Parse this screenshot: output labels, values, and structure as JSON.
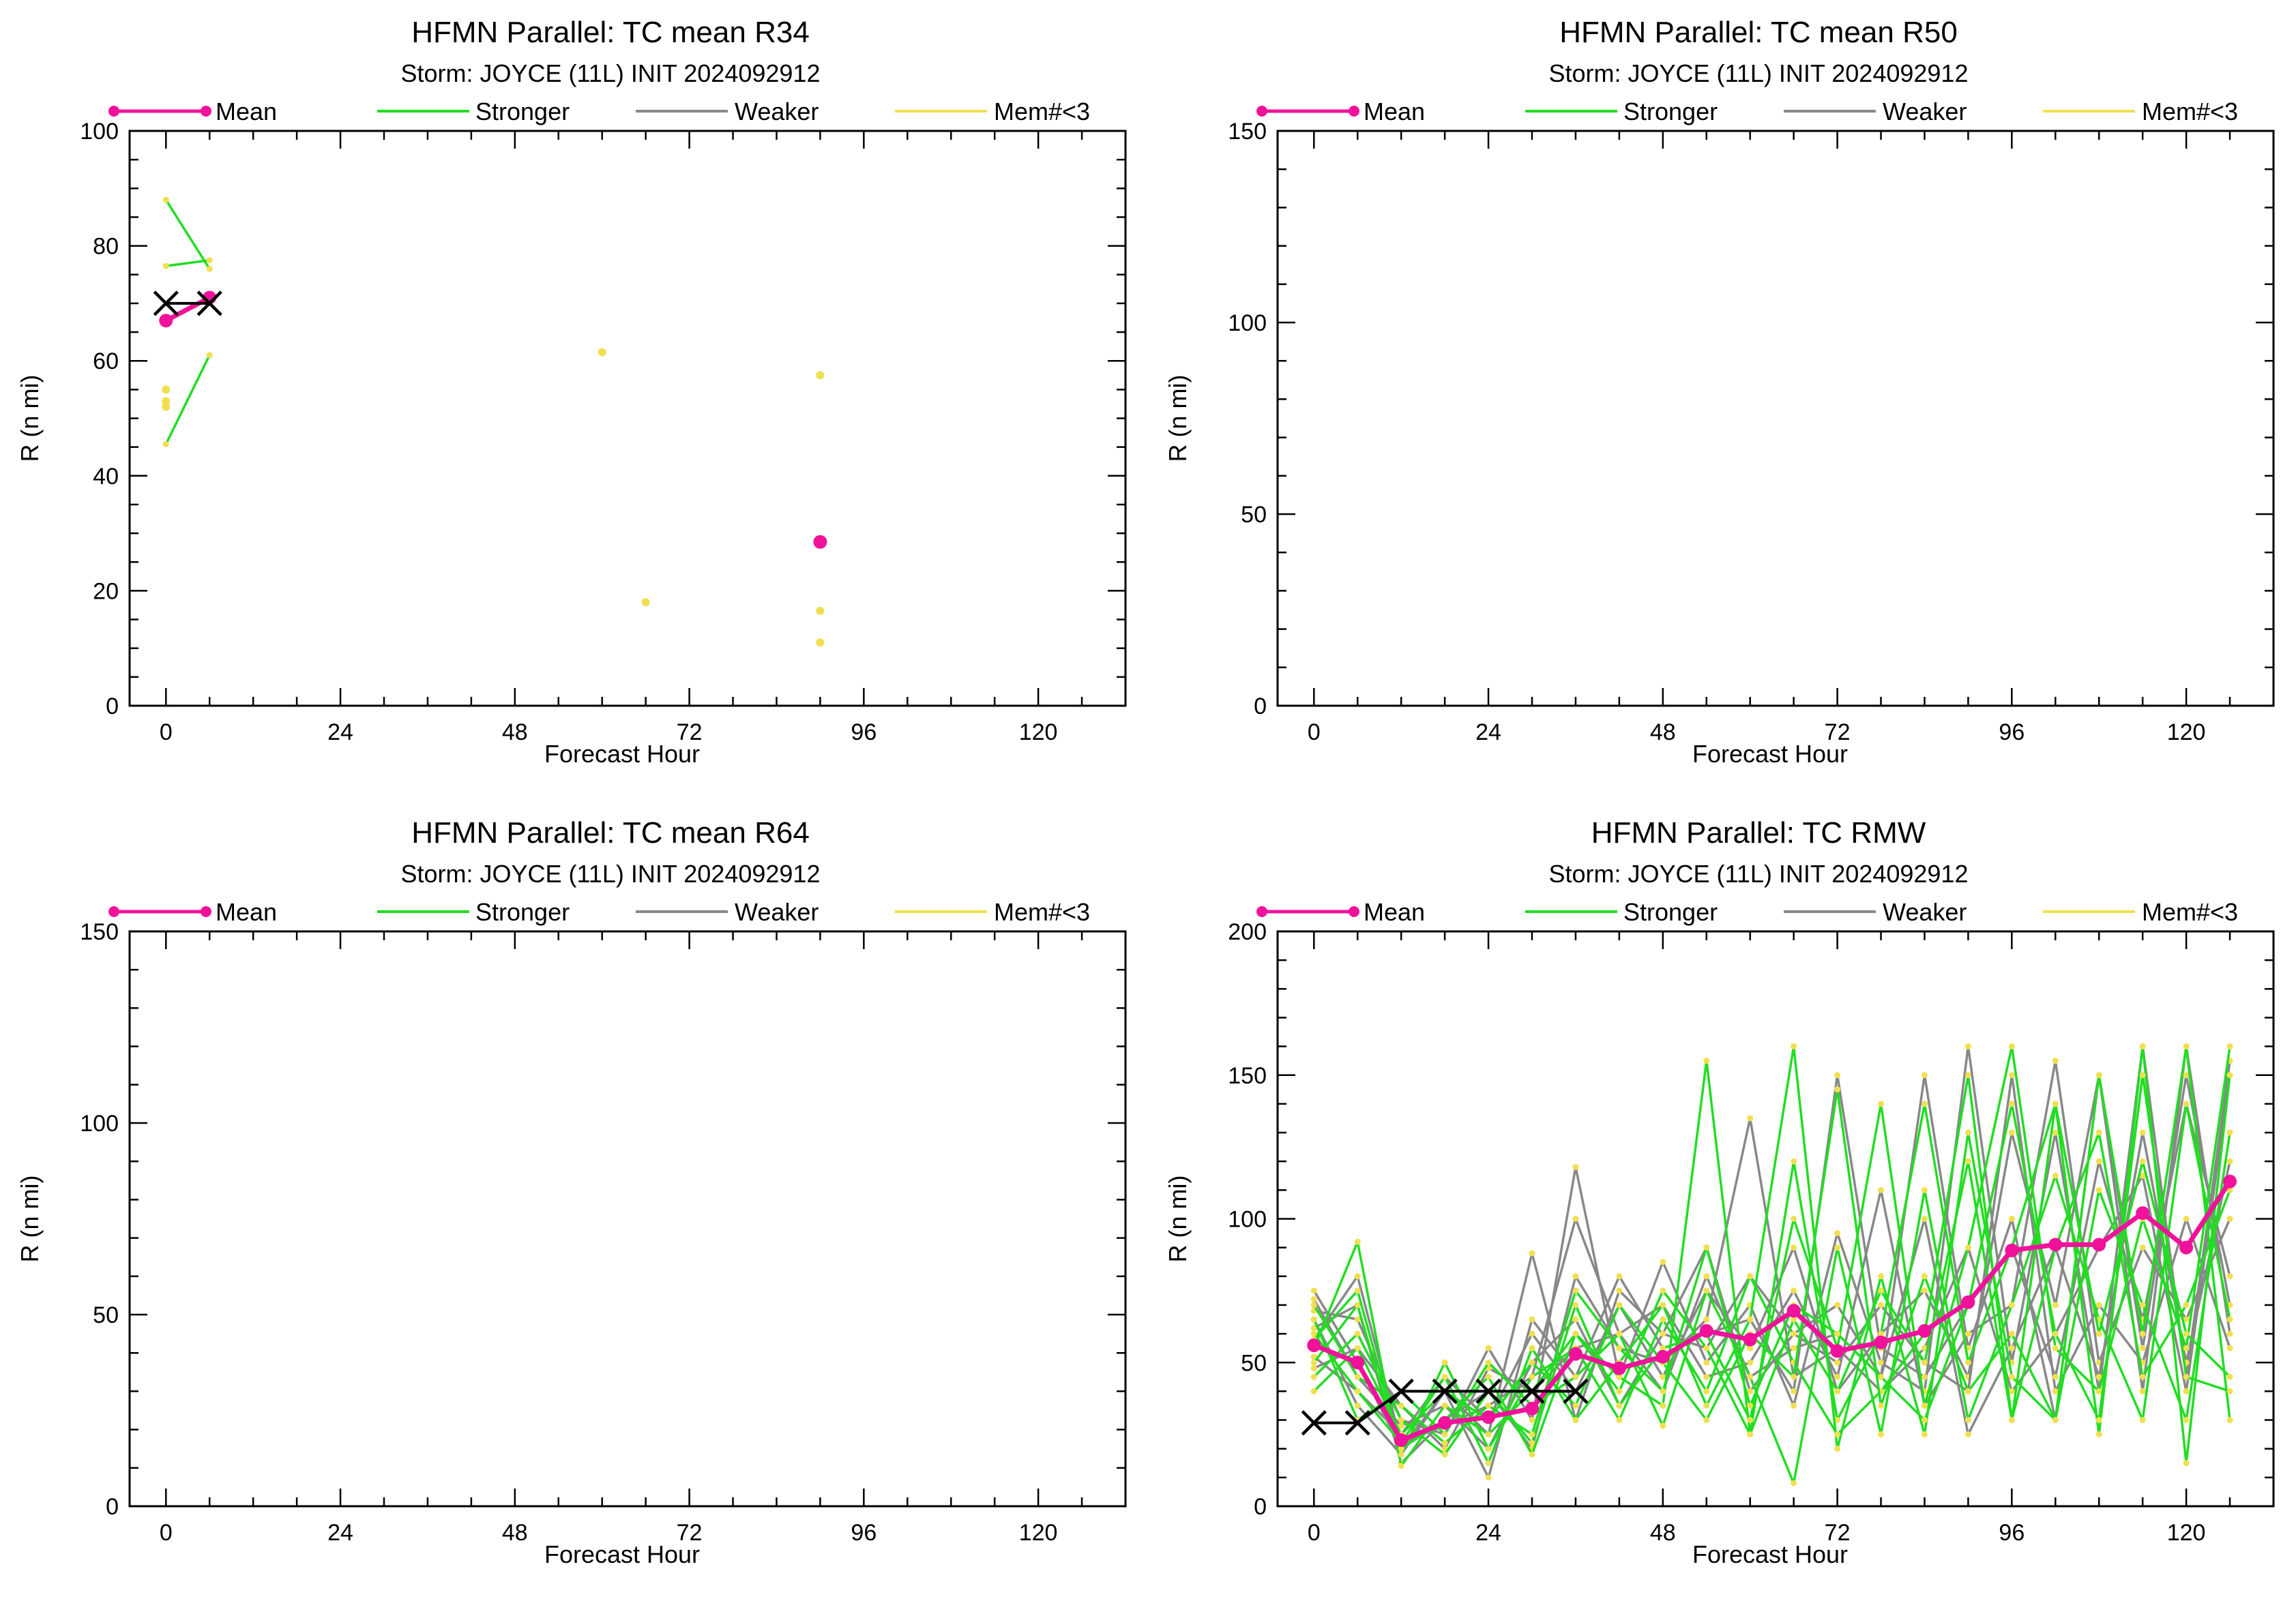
{
  "legend": {
    "mean_label": "Mean",
    "stronger_label": "Stronger",
    "weaker_label": "Weaker",
    "few_label": "Mem#<3"
  },
  "colors": {
    "mean": "#f0129a",
    "stronger": "#22dd22",
    "weaker": "#888888",
    "few": "#f0e050",
    "obs": "#000000"
  },
  "chart_data": [
    {
      "type": "line",
      "title": "HFMN Parallel: TC mean R34",
      "subtitle": "Storm: JOYCE (11L) INIT 2024092912",
      "xlabel": "Forecast Hour",
      "ylabel": "R (n mi)",
      "xlim": [
        -5,
        132
      ],
      "ylim": [
        0,
        100
      ],
      "xticks": [
        0,
        24,
        48,
        72,
        96,
        120
      ],
      "yticks": [
        0,
        20,
        40,
        60,
        80,
        100
      ],
      "yminor": 5,
      "mean": [
        [
          0,
          67
        ],
        [
          6,
          71
        ]
      ],
      "stronger": [
        [
          [
            0,
            88
          ],
          [
            6,
            76
          ]
        ],
        [
          [
            0,
            76.5
          ],
          [
            6,
            77.5
          ]
        ],
        [
          [
            0,
            45.5
          ],
          [
            6,
            61
          ]
        ]
      ],
      "weaker": [],
      "few_points": [
        [
          0,
          55
        ],
        [
          0,
          53
        ],
        [
          0,
          52
        ],
        [
          60,
          61.5
        ],
        [
          66,
          18
        ],
        [
          90,
          57.5
        ],
        [
          90,
          16.5
        ],
        [
          90,
          11
        ]
      ],
      "few_mean": [
        [
          90,
          28.5
        ]
      ],
      "obs": [
        [
          0,
          70
        ],
        [
          6,
          70
        ]
      ]
    },
    {
      "type": "line",
      "title": "HFMN Parallel: TC mean R50",
      "subtitle": "Storm: JOYCE (11L) INIT 2024092912",
      "xlabel": "Forecast Hour",
      "ylabel": "R (n mi)",
      "xlim": [
        -5,
        132
      ],
      "ylim": [
        0,
        150
      ],
      "xticks": [
        0,
        24,
        48,
        72,
        96,
        120
      ],
      "yticks": [
        0,
        50,
        100,
        150
      ],
      "yminor": 10,
      "mean": [],
      "stronger": [],
      "weaker": [],
      "few_points": [],
      "few_mean": [],
      "obs": []
    },
    {
      "type": "line",
      "title": "HFMN Parallel: TC mean R64",
      "subtitle": "Storm: JOYCE (11L) INIT 2024092912",
      "xlabel": "Forecast Hour",
      "ylabel": "R (n mi)",
      "xlim": [
        -5,
        132
      ],
      "ylim": [
        0,
        150
      ],
      "xticks": [
        0,
        24,
        48,
        72,
        96,
        120
      ],
      "yticks": [
        0,
        50,
        100,
        150
      ],
      "yminor": 10,
      "mean": [],
      "stronger": [],
      "weaker": [],
      "few_points": [],
      "few_mean": [],
      "obs": []
    },
    {
      "type": "line",
      "title": "HFMN Parallel: TC RMW",
      "subtitle": "Storm: JOYCE (11L) INIT 2024092912",
      "xlabel": "Forecast Hour",
      "ylabel": "R (n mi)",
      "xlim": [
        -5,
        132
      ],
      "ylim": [
        0,
        200
      ],
      "xticks": [
        0,
        24,
        48,
        72,
        96,
        120
      ],
      "yticks": [
        0,
        50,
        100,
        150,
        200
      ],
      "yminor": 10,
      "mean": [
        [
          0,
          56
        ],
        [
          6,
          50
        ],
        [
          12,
          23
        ],
        [
          18,
          29
        ],
        [
          24,
          31
        ],
        [
          30,
          34
        ],
        [
          36,
          53
        ],
        [
          42,
          48
        ],
        [
          48,
          52
        ],
        [
          54,
          61
        ],
        [
          60,
          58
        ],
        [
          66,
          68
        ],
        [
          72,
          54
        ],
        [
          78,
          57
        ],
        [
          84,
          61
        ],
        [
          90,
          71
        ],
        [
          96,
          89
        ],
        [
          102,
          91
        ],
        [
          108,
          91
        ],
        [
          114,
          102
        ],
        [
          120,
          90
        ],
        [
          126,
          113
        ]
      ],
      "ensemble_x": [
        0,
        6,
        12,
        18,
        24,
        30,
        36,
        42,
        48,
        54,
        60,
        66,
        72,
        78,
        84,
        90,
        96,
        102,
        108,
        114,
        120,
        126
      ],
      "stronger": [
        [
          55,
          92,
          14,
          35,
          25,
          40,
          60,
          45,
          35,
          155,
          25,
          120,
          30,
          60,
          140,
          50,
          90,
          140,
          25,
          160,
          15,
          150
        ],
        [
          60,
          40,
          22,
          45,
          15,
          55,
          30,
          50,
          70,
          35,
          65,
          160,
          20,
          80,
          25,
          130,
          45,
          30,
          150,
          60,
          160,
          30
        ],
        [
          45,
          60,
          30,
          18,
          40,
          22,
          70,
          35,
          55,
          60,
          30,
          100,
          55,
          140,
          35,
          90,
          160,
          55,
          40,
          100,
          55,
          160
        ],
        [
          65,
          30,
          40,
          25,
          50,
          35,
          45,
          60,
          28,
          75,
          45,
          8,
          90,
          25,
          110,
          30,
          70,
          115,
          65,
          30,
          140,
          65
        ],
        [
          50,
          70,
          18,
          50,
          20,
          45,
          55,
          30,
          65,
          40,
          80,
          50,
          25,
          40,
          60,
          150,
          30,
          90,
          130,
          45,
          70,
          110
        ],
        [
          70,
          45,
          35,
          22,
          35,
          25,
          75,
          55,
          40,
          90,
          35,
          70,
          60,
          45,
          30,
          70,
          140,
          60,
          30,
          150,
          45,
          40
        ],
        [
          40,
          55,
          25,
          40,
          30,
          50,
          35,
          70,
          50,
          30,
          60,
          45,
          145,
          35,
          80,
          40,
          60,
          30,
          110,
          70,
          30,
          130
        ],
        [
          58,
          75,
          20,
          30,
          45,
          18,
          60,
          40,
          75,
          55,
          25,
          65,
          40,
          75,
          50,
          120,
          30,
          140,
          60,
          120,
          60,
          45
        ]
      ],
      "weaker": [
        [
          75,
          50,
          20,
          40,
          25,
          88,
          30,
          75,
          60,
          90,
          40,
          60,
          70,
          45,
          150,
          55,
          100,
          30,
          150,
          40,
          160,
          60
        ],
        [
          68,
          65,
          30,
          25,
          55,
          30,
          118,
          45,
          85,
          50,
          70,
          35,
          95,
          50,
          40,
          160,
          50,
          130,
          40,
          160,
          45,
          155
        ],
        [
          52,
          40,
          25,
          45,
          30,
          60,
          40,
          70,
          45,
          75,
          55,
          90,
          40,
          60,
          75,
          45,
          130,
          70,
          150,
          55,
          150,
          70
        ],
        [
          62,
          70,
          15,
          30,
          40,
          20,
          80,
          55,
          50,
          65,
          135,
          45,
          55,
          40,
          55,
          90,
          40,
          60,
          90,
          115,
          40,
          150
        ],
        [
          48,
          55,
          35,
          20,
          48,
          40,
          55,
          60,
          70,
          45,
          50,
          75,
          45,
          110,
          35,
          60,
          70,
          155,
          50,
          90,
          65,
          100
        ],
        [
          72,
          45,
          28,
          35,
          20,
          50,
          65,
          35,
          60,
          55,
          80,
          60,
          50,
          70,
          50,
          40,
          150,
          40,
          70,
          50,
          100,
          55
        ],
        [
          58,
          80,
          22,
          28,
          35,
          45,
          100,
          60,
          40,
          80,
          45,
          55,
          60,
          45,
          100,
          25,
          55,
          90,
          45,
          130,
          50,
          120
        ],
        [
          65,
          35,
          18,
          40,
          10,
          65,
          45,
          80,
          55,
          60,
          65,
          40,
          150,
          55,
          45,
          70,
          90,
          45,
          120,
          65,
          140,
          80
        ]
      ],
      "few_points": [],
      "few_mean": [],
      "obs": [
        [
          0,
          29
        ],
        [
          6,
          29
        ],
        [
          12,
          40
        ],
        [
          18,
          40
        ],
        [
          24,
          40
        ],
        [
          30,
          40
        ],
        [
          36,
          40
        ]
      ]
    }
  ]
}
